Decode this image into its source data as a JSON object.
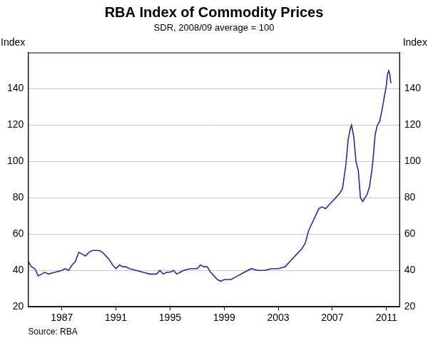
{
  "chart_data": {
    "type": "line",
    "title": "RBA Index of Commodity Prices",
    "subtitle": "SDR, 2008/09 average = 100",
    "ylabel": "Index",
    "source": "Source: RBA",
    "x": [
      1984.5,
      1984.75,
      1985,
      1985.25,
      1985.5,
      1985.75,
      1986,
      1986.5,
      1987,
      1987.25,
      1987.5,
      1987.75,
      1988,
      1988.25,
      1988.5,
      1988.75,
      1989,
      1989.25,
      1989.5,
      1989.75,
      1990,
      1990.25,
      1990.5,
      1990.75,
      1991,
      1991.25,
      1991.5,
      1991.75,
      1992,
      1992.5,
      1993,
      1993.5,
      1994,
      1994.25,
      1994.5,
      1994.75,
      1995,
      1995.25,
      1995.5,
      1995.75,
      1996,
      1996.5,
      1997,
      1997.25,
      1997.5,
      1997.75,
      1998,
      1998.25,
      1998.5,
      1998.75,
      1999,
      1999.5,
      2000,
      2000.5,
      2001,
      2001.5,
      2002,
      2002.5,
      2003,
      2003.5,
      2004,
      2004.25,
      2004.5,
      2004.75,
      2005,
      2005.25,
      2005.5,
      2005.75,
      2006,
      2006.25,
      2006.5,
      2006.75,
      2007,
      2007.25,
      2007.5,
      2007.75,
      2008,
      2008.17,
      2008.33,
      2008.42,
      2008.58,
      2008.75,
      2008.92,
      2009.08,
      2009.25,
      2009.42,
      2009.58,
      2009.75,
      2009.92,
      2010,
      2010.17,
      2010.33,
      2010.5,
      2010.67,
      2010.83,
      2011,
      2011.08,
      2011.17,
      2011.25,
      2011.33
    ],
    "series": [
      {
        "name": "RBA Index of Commodity Prices",
        "color": "#2b2b99",
        "values": [
          45,
          42,
          41,
          37,
          38,
          39,
          38,
          39,
          40,
          41,
          40,
          43,
          45,
          50,
          49,
          48,
          50,
          51,
          51,
          51,
          50,
          48,
          46,
          43,
          41,
          43,
          42,
          42,
          41,
          40,
          39,
          38,
          38,
          40,
          38,
          39,
          39,
          40,
          38,
          39,
          40,
          41,
          41,
          43,
          42,
          42,
          39,
          37,
          35,
          34,
          35,
          35,
          37,
          39,
          41,
          40,
          40,
          41,
          41,
          42,
          46,
          48,
          50,
          52,
          55,
          62,
          66,
          70,
          74,
          75,
          74,
          76,
          78,
          80,
          82,
          85,
          98,
          112,
          118,
          120,
          114,
          100,
          95,
          80,
          78,
          80,
          82,
          86,
          95,
          100,
          115,
          120,
          122,
          128,
          135,
          142,
          148,
          150,
          148,
          143
        ]
      }
    ],
    "xlim": [
      1984.5,
      2012
    ],
    "xticks": [
      1987,
      1991,
      1995,
      1999,
      2003,
      2007,
      2011
    ],
    "ylim": [
      20,
      160
    ],
    "yticks": [
      20,
      40,
      60,
      80,
      100,
      120,
      140
    ],
    "grid": true
  }
}
